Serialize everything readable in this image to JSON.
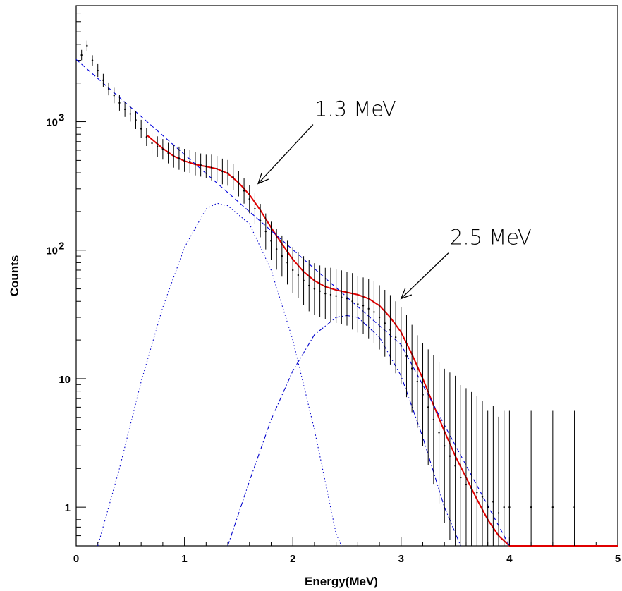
{
  "chart_data": {
    "type": "scatter",
    "xlabel": "Energy(MeV)",
    "ylabel": "Counts",
    "xlim": [
      0,
      5
    ],
    "ylim": [
      0.5,
      8000
    ],
    "yscale": "log",
    "x_ticks": [
      {
        "value": 0,
        "label": "0"
      },
      {
        "value": 1,
        "label": "1"
      },
      {
        "value": 2,
        "label": "2"
      },
      {
        "value": 3,
        "label": "3"
      },
      {
        "value": 4,
        "label": "4"
      },
      {
        "value": 5,
        "label": "5"
      }
    ],
    "y_ticks": [
      {
        "value": 1,
        "label": "1"
      },
      {
        "value": 10,
        "label": "10"
      },
      {
        "value": 100,
        "base": "10",
        "exp": "2"
      },
      {
        "value": 1000,
        "base": "10",
        "exp": "3"
      }
    ],
    "annotations": [
      {
        "text": "1.3 MeV",
        "target": {
          "x": 1.68,
          "y": 330
        },
        "text_at": {
          "x": 2.2,
          "y": 1000
        }
      },
      {
        "text": "2.5 MeV",
        "target": {
          "x": 3.0,
          "y": 42
        },
        "text_at": {
          "x": 3.45,
          "y": 100
        }
      }
    ],
    "series": [
      {
        "role": "data",
        "color": "#000000",
        "x": [
          0.05,
          0.1,
          0.15,
          0.2,
          0.25,
          0.3,
          0.35,
          0.4,
          0.45,
          0.5,
          0.55,
          0.6,
          0.65,
          0.7,
          0.75,
          0.8,
          0.85,
          0.9,
          0.95,
          1.0,
          1.05,
          1.1,
          1.15,
          1.2,
          1.25,
          1.3,
          1.35,
          1.4,
          1.45,
          1.5,
          1.55,
          1.6,
          1.65,
          1.7,
          1.75,
          1.8,
          1.85,
          1.9,
          1.95,
          2.0,
          2.05,
          2.1,
          2.15,
          2.2,
          2.25,
          2.3,
          2.35,
          2.4,
          2.45,
          2.5,
          2.55,
          2.6,
          2.65,
          2.7,
          2.75,
          2.8,
          2.85,
          2.9,
          2.95,
          3.0,
          3.05,
          3.1,
          3.15,
          3.2,
          3.25,
          3.3,
          3.35,
          3.4,
          3.45,
          3.5,
          3.55,
          3.6,
          3.65,
          3.7,
          3.75,
          3.8,
          3.85,
          3.9,
          3.95,
          4.0,
          4.2,
          4.4,
          4.6
        ],
        "y": [
          3300,
          3900,
          3000,
          2500,
          2100,
          1800,
          1600,
          1400,
          1250,
          1150,
          1030,
          880,
          760,
          680,
          640,
          610,
          570,
          540,
          520,
          500,
          490,
          470,
          460,
          450,
          440,
          430,
          410,
          400,
          370,
          330,
          290,
          250,
          210,
          170,
          140,
          118,
          102,
          90,
          80,
          70,
          64,
          58,
          53,
          50,
          48,
          46,
          45,
          44,
          43,
          42,
          40,
          38,
          37,
          35,
          33,
          30,
          27,
          24,
          21,
          18,
          15,
          12,
          9.5,
          7.5,
          6,
          4.8,
          3.8,
          3.0,
          2.5,
          2.1,
          1.7,
          1.5,
          1.4,
          1.3,
          1.2,
          1.0,
          1.1,
          0.9,
          1.0,
          1.0,
          1.0,
          1.0,
          1.0
        ],
        "err": [
          0.04,
          0.04,
          0.04,
          0.05,
          0.05,
          0.05,
          0.06,
          0.06,
          0.06,
          0.06,
          0.07,
          0.07,
          0.07,
          0.08,
          0.08,
          0.08,
          0.08,
          0.09,
          0.09,
          0.09,
          0.09,
          0.09,
          0.09,
          0.09,
          0.1,
          0.1,
          0.1,
          0.1,
          0.1,
          0.1,
          0.1,
          0.11,
          0.12,
          0.13,
          0.14,
          0.15,
          0.16,
          0.16,
          0.17,
          0.18,
          0.18,
          0.19,
          0.2,
          0.2,
          0.2,
          0.2,
          0.21,
          0.21,
          0.21,
          0.21,
          0.22,
          0.22,
          0.22,
          0.23,
          0.24,
          0.25,
          0.26,
          0.27,
          0.28,
          0.3,
          0.32,
          0.34,
          0.36,
          0.4,
          0.45,
          0.5,
          0.55,
          0.6,
          0.65,
          0.7,
          0.72,
          0.75,
          0.75,
          0.75,
          0.75,
          0.75,
          0.75,
          0.75,
          0.75,
          0.75,
          0.75,
          0.75,
          0.75
        ]
      },
      {
        "role": "total-fit",
        "color": "#e00000",
        "x": [
          0.65,
          0.8,
          0.9,
          1.0,
          1.1,
          1.2,
          1.3,
          1.4,
          1.5,
          1.6,
          1.7,
          1.8,
          1.9,
          2.0,
          2.1,
          2.2,
          2.3,
          2.4,
          2.5,
          2.6,
          2.7,
          2.8,
          2.9,
          3.0,
          3.1,
          3.2,
          3.3,
          3.4,
          3.5,
          3.6,
          3.7,
          3.8,
          3.9,
          4.0,
          4.2,
          5.0
        ],
        "y": [
          790,
          620,
          540,
          495,
          465,
          448,
          430,
          395,
          335,
          270,
          205,
          150,
          112,
          85,
          68,
          58,
          52,
          49,
          47,
          45,
          42,
          37,
          30,
          23,
          15.5,
          10,
          6.2,
          3.9,
          2.5,
          1.7,
          1.15,
          0.8,
          0.6,
          0.5,
          0.5,
          0.5
        ]
      },
      {
        "role": "background-fit",
        "color": "#0000dd",
        "dash": "6,4",
        "x": [
          0.0,
          1.0,
          2.0,
          3.0,
          4.0
        ],
        "y": [
          3050,
          555,
          101,
          18.4,
          0.5
        ]
      },
      {
        "role": "peak-1.3",
        "color": "#0000cc",
        "dash": "1.5,3",
        "x": [
          0.2,
          0.4,
          0.6,
          0.8,
          1.0,
          1.2,
          1.3,
          1.4,
          1.6,
          1.8,
          2.0,
          2.2,
          2.4,
          2.45
        ],
        "y": [
          0.5,
          2.0,
          9.5,
          36,
          105,
          210,
          232,
          222,
          160,
          70,
          20,
          4.0,
          0.62,
          0.5
        ]
      },
      {
        "role": "peak-2.5",
        "color": "#0000cc",
        "dash": "7,3,1.5,3",
        "x": [
          1.4,
          1.6,
          1.8,
          2.0,
          2.2,
          2.4,
          2.5,
          2.6,
          2.8,
          3.0,
          3.2,
          3.4,
          3.55
        ],
        "y": [
          0.5,
          1.6,
          4.8,
          11.5,
          22,
          30,
          31,
          30,
          21,
          10.5,
          3.5,
          1.0,
          0.5
        ]
      }
    ]
  }
}
